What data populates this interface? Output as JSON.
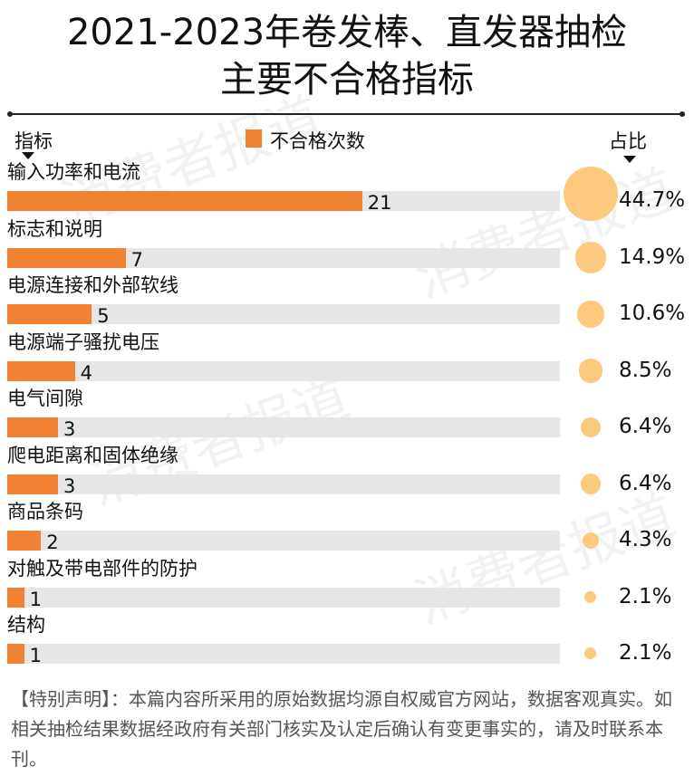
{
  "title_line1": "2021-2023年卷发棒、直发器抽检",
  "title_line2": "主要不合格指标",
  "header": {
    "indicator": "指标",
    "legend": "不合格次数",
    "share": "占比"
  },
  "watermark": "消费者报道",
  "colors": {
    "bar": "#f08232",
    "track": "#e6e6e6",
    "circle": "#fcc97f"
  },
  "chart_data": {
    "type": "bar",
    "orientation": "horizontal",
    "categories": [
      "输入功率和电流",
      "标志和说明",
      "电源连接和外部软线",
      "电源端子骚扰电压",
      "电气间隙",
      "爬电距离和固体绝缘",
      "商品条码",
      "对触及带电部件的防护",
      "结构"
    ],
    "values": [
      21,
      7,
      5,
      4,
      3,
      3,
      2,
      1,
      1
    ],
    "shares": [
      "44.7%",
      "14.9%",
      "10.6%",
      "8.5%",
      "6.4%",
      "6.4%",
      "4.3%",
      "2.1%",
      "2.1%"
    ],
    "share_values": [
      44.7,
      14.9,
      10.6,
      8.5,
      6.4,
      6.4,
      4.3,
      2.1,
      2.1
    ],
    "xlim": [
      0,
      32.7
    ],
    "legend": "不合格次数"
  },
  "note": "【特别声明】：本篇内容所采用的原始数据均源自权威官方网站，数据客观真实。如相关抽检结果数据经政府有关部门核实及认定后确认有变更事实的，请及时联系本刊。"
}
